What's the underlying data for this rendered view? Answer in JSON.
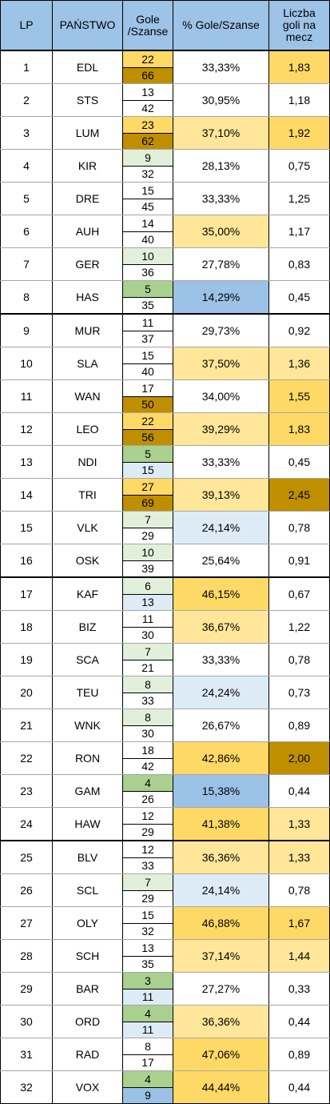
{
  "headers": {
    "lp": "LP",
    "state": "PAŃSTWO",
    "goals": [
      "Gole",
      "/Szanse"
    ],
    "pct": "% Gole/Szanse",
    "avg": [
      "Liczba",
      "goli na",
      "mecz"
    ]
  },
  "colors": {
    "header": "#9dc3e6",
    "dark_gold": "#bf8f00",
    "gold": "#ffd966",
    "light_gold": "#ffe699",
    "green": "#a9d08e",
    "light_green": "#e2efda",
    "blue": "#9bc2e6",
    "light_blue": "#ddebf7",
    "white": "#ffffff"
  },
  "rows": [
    {
      "lp": "1",
      "state": "EDL",
      "goals": "22",
      "chances": "66",
      "pct": "33,33%",
      "avg": "1,83",
      "goals_bg": "gold",
      "chances_bg": "dark_gold",
      "pct_bg": "white",
      "avg_bg": "gold"
    },
    {
      "lp": "2",
      "state": "STS",
      "goals": "13",
      "chances": "42",
      "pct": "30,95%",
      "avg": "1,18",
      "goals_bg": "white",
      "chances_bg": "white",
      "pct_bg": "white",
      "avg_bg": "white"
    },
    {
      "lp": "3",
      "state": "LUM",
      "goals": "23",
      "chances": "62",
      "pct": "37,10%",
      "avg": "1,92",
      "goals_bg": "gold",
      "chances_bg": "dark_gold",
      "pct_bg": "light_gold",
      "avg_bg": "gold"
    },
    {
      "lp": "4",
      "state": "KIR",
      "goals": "9",
      "chances": "32",
      "pct": "28,13%",
      "avg": "0,75",
      "goals_bg": "light_green",
      "chances_bg": "white",
      "pct_bg": "white",
      "avg_bg": "white"
    },
    {
      "lp": "5",
      "state": "DRE",
      "goals": "15",
      "chances": "45",
      "pct": "33,33%",
      "avg": "1,25",
      "goals_bg": "white",
      "chances_bg": "white",
      "pct_bg": "white",
      "avg_bg": "white"
    },
    {
      "lp": "6",
      "state": "AUH",
      "goals": "14",
      "chances": "40",
      "pct": "35,00%",
      "avg": "1,17",
      "goals_bg": "white",
      "chances_bg": "white",
      "pct_bg": "light_gold",
      "avg_bg": "white"
    },
    {
      "lp": "7",
      "state": "GER",
      "goals": "10",
      "chances": "36",
      "pct": "27,78%",
      "avg": "0,83",
      "goals_bg": "light_green",
      "chances_bg": "white",
      "pct_bg": "white",
      "avg_bg": "white"
    },
    {
      "lp": "8",
      "state": "HAS",
      "goals": "5",
      "chances": "35",
      "pct": "14,29%",
      "avg": "0,45",
      "goals_bg": "green",
      "chances_bg": "white",
      "pct_bg": "blue",
      "avg_bg": "white"
    },
    {
      "lp": "9",
      "state": "MUR",
      "goals": "11",
      "chances": "37",
      "pct": "29,73%",
      "avg": "0,92",
      "goals_bg": "white",
      "chances_bg": "white",
      "pct_bg": "white",
      "avg_bg": "white"
    },
    {
      "lp": "10",
      "state": "SLA",
      "goals": "15",
      "chances": "40",
      "pct": "37,50%",
      "avg": "1,36",
      "goals_bg": "white",
      "chances_bg": "white",
      "pct_bg": "light_gold",
      "avg_bg": "light_gold"
    },
    {
      "lp": "11",
      "state": "WAN",
      "goals": "17",
      "chances": "50",
      "pct": "34,00%",
      "avg": "1,55",
      "goals_bg": "white",
      "chances_bg": "dark_gold",
      "pct_bg": "white",
      "avg_bg": "gold"
    },
    {
      "lp": "12",
      "state": "LEO",
      "goals": "22",
      "chances": "56",
      "pct": "39,29%",
      "avg": "1,83",
      "goals_bg": "gold",
      "chances_bg": "dark_gold",
      "pct_bg": "light_gold",
      "avg_bg": "gold"
    },
    {
      "lp": "13",
      "state": "NDI",
      "goals": "5",
      "chances": "15",
      "pct": "33,33%",
      "avg": "0,45",
      "goals_bg": "green",
      "chances_bg": "light_blue",
      "pct_bg": "white",
      "avg_bg": "white"
    },
    {
      "lp": "14",
      "state": "TRI",
      "goals": "27",
      "chances": "69",
      "pct": "39,13%",
      "avg": "2,45",
      "goals_bg": "gold",
      "chances_bg": "dark_gold",
      "pct_bg": "light_gold",
      "avg_bg": "dark_gold"
    },
    {
      "lp": "15",
      "state": "VLK",
      "goals": "7",
      "chances": "29",
      "pct": "24,14%",
      "avg": "0,78",
      "goals_bg": "light_green",
      "chances_bg": "white",
      "pct_bg": "light_blue",
      "avg_bg": "white"
    },
    {
      "lp": "16",
      "state": "OSK",
      "goals": "10",
      "chances": "39",
      "pct": "25,64%",
      "avg": "0,91",
      "goals_bg": "light_green",
      "chances_bg": "white",
      "pct_bg": "white",
      "avg_bg": "white"
    },
    {
      "lp": "17",
      "state": "KAF",
      "goals": "6",
      "chances": "13",
      "pct": "46,15%",
      "avg": "0,67",
      "goals_bg": "light_green",
      "chances_bg": "light_blue",
      "pct_bg": "gold",
      "avg_bg": "white"
    },
    {
      "lp": "18",
      "state": "BIZ",
      "goals": "11",
      "chances": "30",
      "pct": "36,67%",
      "avg": "1,22",
      "goals_bg": "white",
      "chances_bg": "white",
      "pct_bg": "light_gold",
      "avg_bg": "white"
    },
    {
      "lp": "19",
      "state": "SCA",
      "goals": "7",
      "chances": "21",
      "pct": "33,33%",
      "avg": "0,78",
      "goals_bg": "light_green",
      "chances_bg": "white",
      "pct_bg": "white",
      "avg_bg": "white"
    },
    {
      "lp": "20",
      "state": "TEU",
      "goals": "8",
      "chances": "33",
      "pct": "24,24%",
      "avg": "0,73",
      "goals_bg": "light_green",
      "chances_bg": "white",
      "pct_bg": "light_blue",
      "avg_bg": "white"
    },
    {
      "lp": "21",
      "state": "WNK",
      "goals": "8",
      "chances": "30",
      "pct": "26,67%",
      "avg": "0,89",
      "goals_bg": "light_green",
      "chances_bg": "white",
      "pct_bg": "white",
      "avg_bg": "white"
    },
    {
      "lp": "22",
      "state": "RON",
      "goals": "18",
      "chances": "42",
      "pct": "42,86%",
      "avg": "2,00",
      "goals_bg": "white",
      "chances_bg": "white",
      "pct_bg": "gold",
      "avg_bg": "dark_gold"
    },
    {
      "lp": "23",
      "state": "GAM",
      "goals": "4",
      "chances": "26",
      "pct": "15,38%",
      "avg": "0,44",
      "goals_bg": "green",
      "chances_bg": "white",
      "pct_bg": "blue",
      "avg_bg": "white"
    },
    {
      "lp": "24",
      "state": "HAW",
      "goals": "12",
      "chances": "29",
      "pct": "41,38%",
      "avg": "1,33",
      "goals_bg": "white",
      "chances_bg": "white",
      "pct_bg": "gold",
      "avg_bg": "light_gold"
    },
    {
      "lp": "25",
      "state": "BLV",
      "goals": "12",
      "chances": "33",
      "pct": "36,36%",
      "avg": "1,33",
      "goals_bg": "white",
      "chances_bg": "white",
      "pct_bg": "light_gold",
      "avg_bg": "light_gold"
    },
    {
      "lp": "26",
      "state": "SCL",
      "goals": "7",
      "chances": "29",
      "pct": "24,14%",
      "avg": "0,78",
      "goals_bg": "light_green",
      "chances_bg": "white",
      "pct_bg": "light_blue",
      "avg_bg": "white"
    },
    {
      "lp": "27",
      "state": "OLY",
      "goals": "15",
      "chances": "32",
      "pct": "46,88%",
      "avg": "1,67",
      "goals_bg": "white",
      "chances_bg": "white",
      "pct_bg": "gold",
      "avg_bg": "gold"
    },
    {
      "lp": "28",
      "state": "SCH",
      "goals": "13",
      "chances": "35",
      "pct": "37,14%",
      "avg": "1,44",
      "goals_bg": "white",
      "chances_bg": "white",
      "pct_bg": "light_gold",
      "avg_bg": "light_gold"
    },
    {
      "lp": "29",
      "state": "BAR",
      "goals": "3",
      "chances": "11",
      "pct": "27,27%",
      "avg": "0,33",
      "goals_bg": "green",
      "chances_bg": "light_blue",
      "pct_bg": "white",
      "avg_bg": "white"
    },
    {
      "lp": "30",
      "state": "ORD",
      "goals": "4",
      "chances": "11",
      "pct": "36,36%",
      "avg": "0,44",
      "goals_bg": "green",
      "chances_bg": "light_blue",
      "pct_bg": "light_gold",
      "avg_bg": "white"
    },
    {
      "lp": "31",
      "state": "RAD",
      "goals": "8",
      "chances": "17",
      "pct": "47,06%",
      "avg": "0,89",
      "goals_bg": "white",
      "chances_bg": "white",
      "pct_bg": "gold",
      "avg_bg": "white"
    },
    {
      "lp": "32",
      "state": "VOX",
      "goals": "4",
      "chances": "9",
      "pct": "44,44%",
      "avg": "0,44",
      "goals_bg": "green",
      "chances_bg": "blue",
      "pct_bg": "gold",
      "avg_bg": "white"
    }
  ]
}
